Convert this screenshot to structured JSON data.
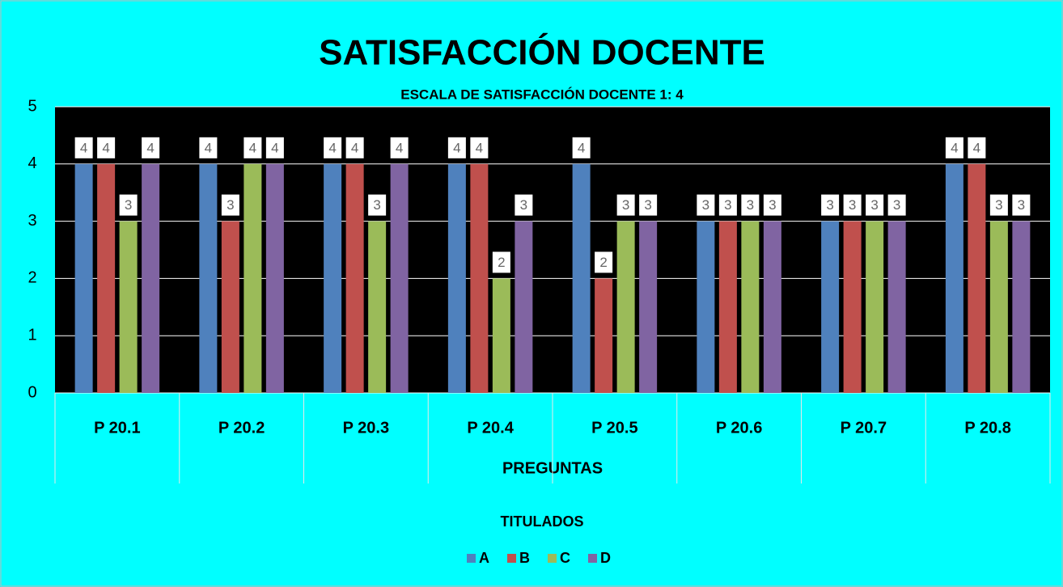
{
  "chart_data": {
    "type": "bar",
    "title": "SATISFACCIÓN DOCENTE",
    "subtitle": "ESCALA DE SATISFACCIÓN DOCENTE 1: 4",
    "x_label": "PREGUNTAS",
    "legend_title": "TITULADOS",
    "categories": [
      "P 20.1",
      "P 20.2",
      "P 20.3",
      "P 20.4",
      "P 20.5",
      "P 20.6",
      "P 20.7",
      "P 20.8"
    ],
    "series": [
      {
        "name": "A",
        "color": "#4f81bd",
        "values": [
          4,
          4,
          4,
          4,
          4,
          3,
          3,
          4
        ]
      },
      {
        "name": "B",
        "color": "#c0504d",
        "values": [
          4,
          3,
          4,
          4,
          2,
          3,
          3,
          4
        ]
      },
      {
        "name": "C",
        "color": "#9bbb59",
        "values": [
          3,
          4,
          3,
          2,
          3,
          3,
          3,
          3
        ]
      },
      {
        "name": "D",
        "color": "#8064a2",
        "values": [
          4,
          4,
          4,
          3,
          3,
          3,
          3,
          3
        ]
      }
    ],
    "ylim": [
      0,
      5
    ],
    "yticks": [
      0,
      1,
      2,
      3,
      4,
      5
    ],
    "grid": true,
    "legend": "bottom"
  }
}
